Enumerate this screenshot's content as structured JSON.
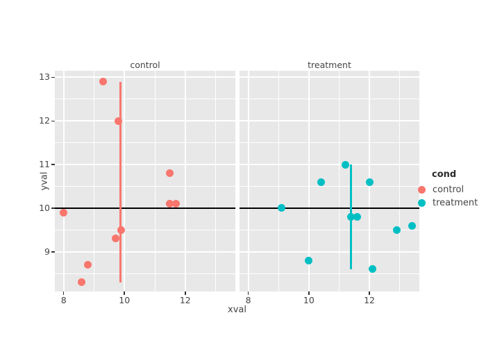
{
  "chart_data": {
    "type": "scatter",
    "faceted_by": "cond",
    "xlabel": "xval",
    "ylabel": "yval",
    "x_ticks": [
      8,
      10,
      12
    ],
    "y_ticks": [
      9,
      10,
      11,
      12,
      13
    ],
    "x_minor_ticks": [
      9,
      11,
      13
    ],
    "y_minor_ticks": [
      8.5,
      9.5,
      10.5,
      11.5,
      12.5
    ],
    "x_range": [
      7.71,
      13.65
    ],
    "y_range": [
      8.09,
      13.15
    ],
    "grid": "on",
    "panel_background": "#E8E8E8",
    "gridline_color": "#FFFFFF",
    "tick_color": "#333333",
    "reference_hline": {
      "y": 10,
      "color": "#000000"
    },
    "facets": [
      {
        "label": "control",
        "series": "control",
        "color": "#F8766D",
        "points": [
          [
            8.0,
            9.9
          ],
          [
            8.6,
            8.3
          ],
          [
            8.8,
            8.7
          ],
          [
            9.3,
            12.9
          ],
          [
            9.7,
            9.3
          ],
          [
            9.8,
            12.0
          ],
          [
            9.9,
            9.5
          ],
          [
            11.5,
            10.1
          ],
          [
            11.5,
            10.8
          ],
          [
            11.7,
            10.1
          ]
        ],
        "range_vline": {
          "x": 9.87,
          "y_min": 8.3,
          "y_max": 12.9
        }
      },
      {
        "label": "treatment",
        "series": "treatment",
        "color": "#00BFC4",
        "points": [
          [
            9.1,
            10.0
          ],
          [
            10.0,
            8.8
          ],
          [
            10.4,
            10.6
          ],
          [
            11.2,
            11.0
          ],
          [
            11.4,
            9.8
          ],
          [
            11.6,
            9.8
          ],
          [
            12.0,
            10.6
          ],
          [
            12.1,
            8.6
          ],
          [
            12.9,
            9.5
          ],
          [
            13.4,
            9.6
          ]
        ],
        "range_vline": {
          "x": 11.4,
          "y_min": 8.6,
          "y_max": 11.0
        }
      }
    ],
    "legend": {
      "title": "cond",
      "position": "right",
      "items": [
        {
          "label": "control",
          "color": "#F8766D"
        },
        {
          "label": "treatment",
          "color": "#00BFC4"
        }
      ]
    }
  }
}
